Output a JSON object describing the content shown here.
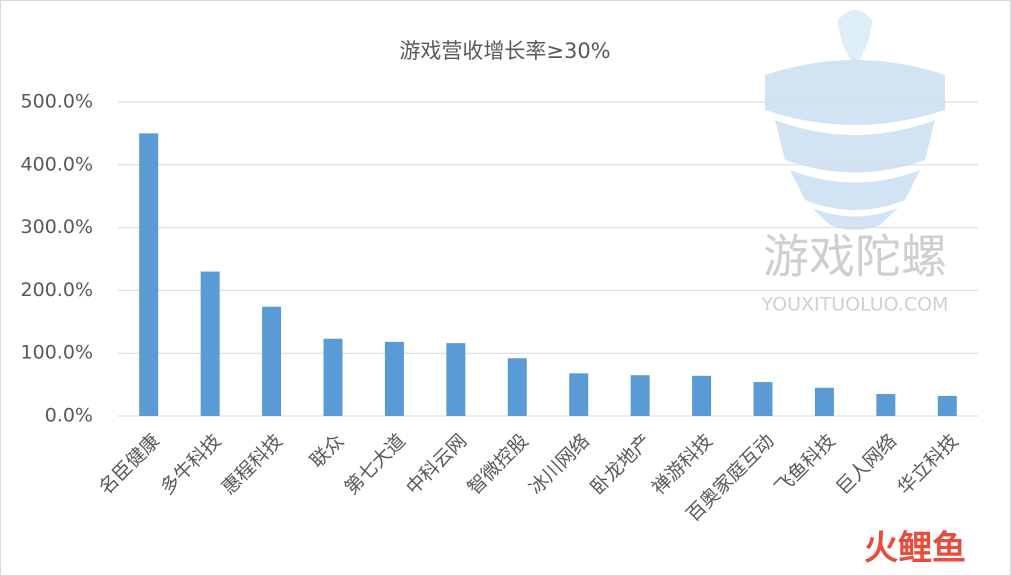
{
  "chart_data": {
    "type": "bar",
    "title": "游戏营收增长率≥30%",
    "categories": [
      "名臣健康",
      "多牛科技",
      "惠程科技",
      "联众",
      "第七大道",
      "中科云网",
      "智微控股",
      "冰川网络",
      "卧龙地产",
      "禅游科技",
      "百奥家庭互动",
      "飞鱼科技",
      "巨人网络",
      "华立科技"
    ],
    "values": [
      450,
      230,
      174,
      123,
      118,
      116,
      92,
      68,
      65,
      64,
      54,
      45,
      35,
      32
    ],
    "color": "#5b9bd5",
    "ylim": [
      0,
      500
    ],
    "yticks": [
      {
        "value": 0,
        "label": "0.0%"
      },
      {
        "value": 100,
        "label": "100.0%"
      },
      {
        "value": 200,
        "label": "200.0%"
      },
      {
        "value": 300,
        "label": "300.0%"
      },
      {
        "value": 400,
        "label": "400.0%"
      },
      {
        "value": 500,
        "label": "500.0%"
      }
    ],
    "grid": true
  },
  "watermark": {
    "name": "游戏陀螺",
    "url": "YOUXITUOLUO.COM",
    "logo": "火鲤鱼"
  }
}
